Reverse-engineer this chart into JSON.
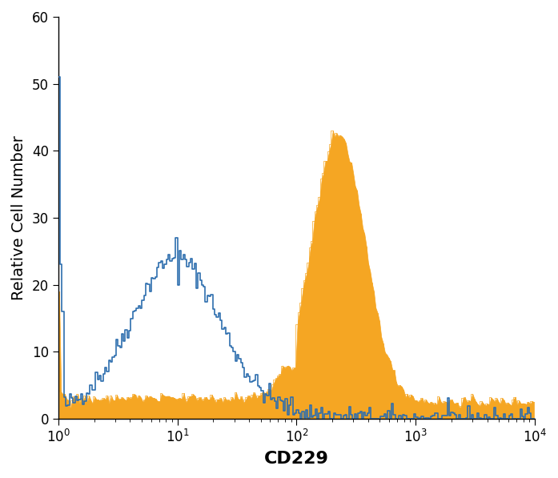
{
  "title": "",
  "xlabel": "CD229",
  "ylabel": "Relative Cell Number",
  "xlim_log": [
    1.0,
    10000.0
  ],
  "ylim": [
    0,
    60
  ],
  "yticks": [
    0,
    10,
    20,
    30,
    40,
    50,
    60
  ],
  "blue_color": "#2E6EAE",
  "orange_color": "#F5A623",
  "background_color": "#ffffff",
  "xlabel_fontsize": 16,
  "ylabel_fontsize": 14,
  "tick_fontsize": 12
}
